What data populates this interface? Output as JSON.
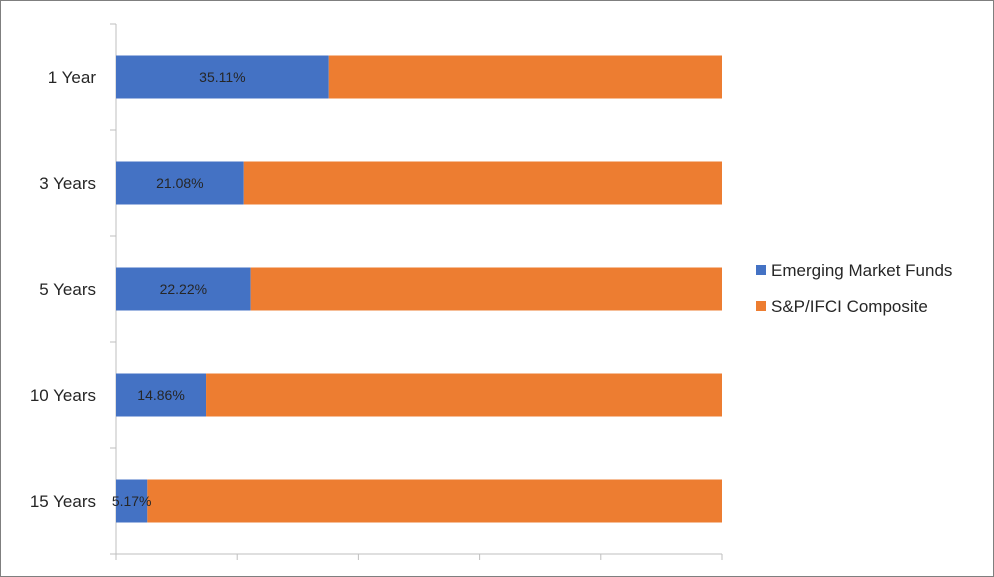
{
  "chart_data": {
    "type": "bar",
    "orientation": "horizontal",
    "stacking": "percent",
    "categories": [
      "1 Year",
      "3 Years",
      "5 Years",
      "10 Years",
      "15 Years"
    ],
    "series": [
      {
        "name": "Emerging Market Funds",
        "values": [
          35.11,
          21.08,
          22.22,
          14.86,
          5.17
        ],
        "labels": [
          "35.11%",
          "21.08%",
          "22.22%",
          "14.86%",
          "5.17%"
        ],
        "color": "#4472c4"
      },
      {
        "name": "S&P/IFCI Composite",
        "values": [
          64.89,
          78.92,
          77.78,
          85.14,
          94.83
        ],
        "color": "#ed7d31"
      }
    ],
    "xlim": [
      0,
      100
    ],
    "grid": false,
    "legend_position": "right",
    "title": "",
    "xlabel": "",
    "ylabel": ""
  }
}
